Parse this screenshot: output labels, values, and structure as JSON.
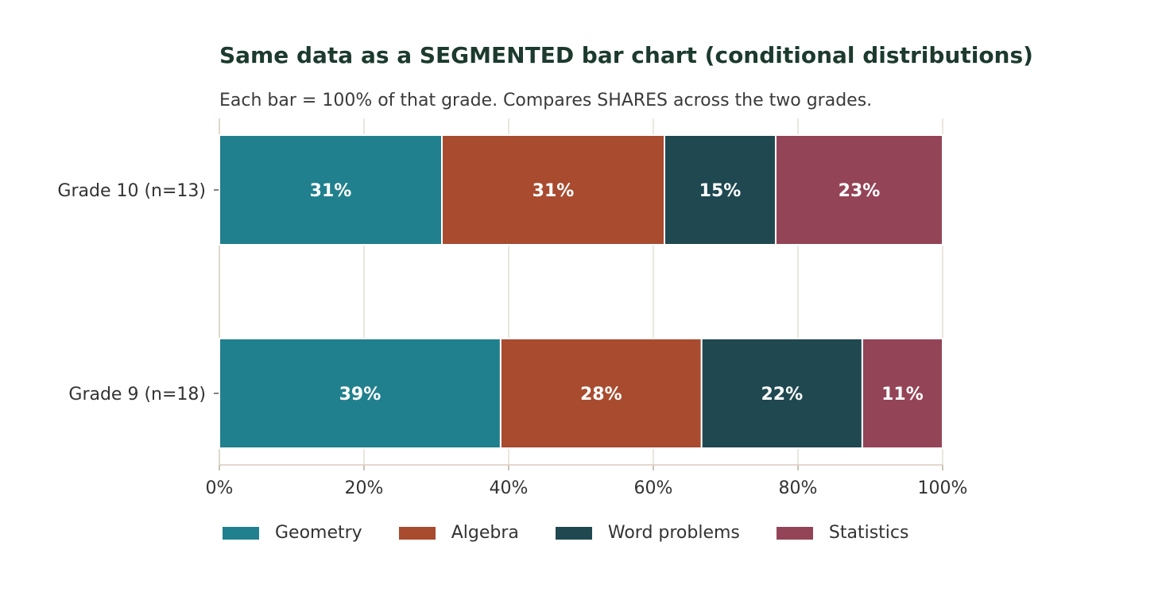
{
  "chart_data": {
    "type": "bar",
    "orientation": "horizontal",
    "stacked": "percent",
    "title": "Same data as a SEGMENTED bar chart (conditional distributions)",
    "subtitle": "Each bar = 100% of that grade. Compares SHARES across the two grades.",
    "categories": [
      "Grade 10 (n=13)",
      "Grade 9 (n=18)"
    ],
    "series": [
      {
        "name": "Geometry",
        "color": "#21808d",
        "values": [
          30.77,
          38.89
        ],
        "labels": [
          "31%",
          "39%"
        ]
      },
      {
        "name": "Algebra",
        "color": "#a84b2f",
        "values": [
          30.77,
          27.78
        ],
        "labels": [
          "31%",
          "28%"
        ]
      },
      {
        "name": "Word problems",
        "color": "#1f4850",
        "values": [
          15.38,
          22.22
        ],
        "labels": [
          "15%",
          "22%"
        ]
      },
      {
        "name": "Statistics",
        "color": "#944457",
        "values": [
          23.08,
          11.11
        ],
        "labels": [
          "23%",
          "11%"
        ]
      }
    ],
    "xlim": [
      0,
      100
    ],
    "xticks": [
      "0%",
      "20%",
      "40%",
      "60%",
      "80%",
      "100%"
    ],
    "grid": "vertical",
    "legend": "bottom"
  }
}
